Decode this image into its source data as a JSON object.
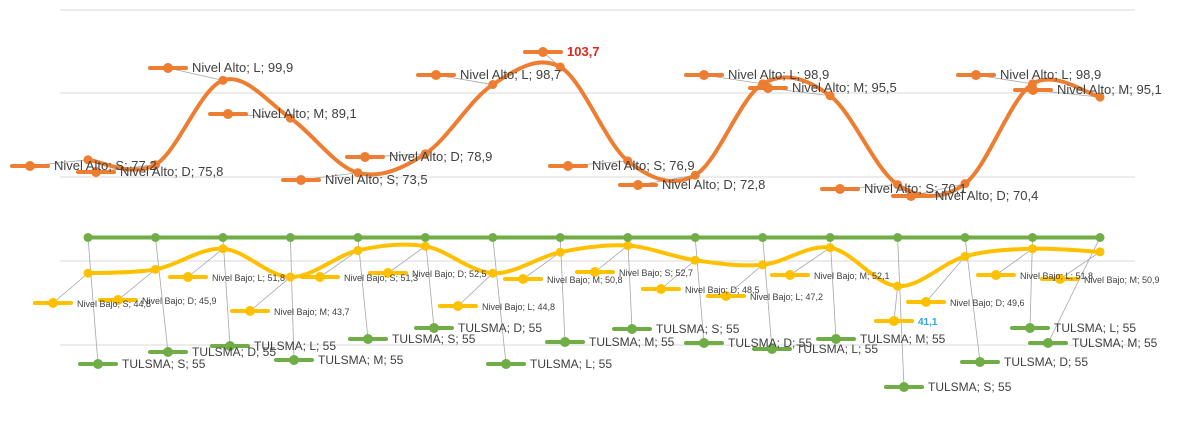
{
  "colors": {
    "alto": "#ED7D31",
    "bajo": "#FFC000",
    "tulsma": "#70AD47",
    "grid": "#D9D9D9",
    "max_label": "#E0281B",
    "min_label": "#2AA6D8"
  },
  "chart_data": {
    "type": "line",
    "categories": [
      "S",
      "D",
      "L",
      "M",
      "S",
      "D",
      "L",
      "M",
      "S",
      "D",
      "L",
      "M",
      "S",
      "D",
      "L",
      "M"
    ],
    "ylim": [
      0,
      120
    ],
    "grid": true,
    "legend": "none",
    "series": [
      {
        "name": "Nivel Alto",
        "values": [
          77.2,
          75.8,
          99.9,
          89.1,
          73.5,
          78.9,
          98.7,
          103.7,
          76.9,
          72.8,
          98.9,
          95.5,
          70.1,
          70.4,
          98.9,
          95.1
        ],
        "labels": [
          "Nivel Alto; S; 77,2",
          "Nivel Alto; D; 75,8",
          "Nivel Alto; L; 99,9",
          "Nivel Alto; M; 89,1",
          "Nivel Alto; S; 73,5",
          "Nivel Alto; D; 78,9",
          "Nivel Alto; L; 98,7",
          "103,7",
          "Nivel Alto; S; 76,9",
          "Nivel Alto; D; 72,8",
          "Nivel Alto; L; 98,9",
          "Nivel Alto; M; 95,5",
          "Nivel Alto; S; 70,1",
          "Nivel Alto; D; 70,4",
          "Nivel Alto; L; 98,9",
          "Nivel Alto; M; 95,1"
        ]
      },
      {
        "name": "Nivel Bajo",
        "values": [
          44.8,
          45.9,
          51.8,
          43.7,
          51.3,
          52.5,
          44.8,
          50.8,
          52.7,
          48.5,
          47.2,
          52.1,
          41.1,
          49.6,
          51.8,
          50.9
        ],
        "labels": [
          "Nivel Bajo; S; 44,8",
          "Nivel Bajo; D; 45,9",
          "Nivel Bajo; L; 51,8",
          "Nivel Bajo; M; 43,7",
          "Nivel Bajo; S; 51,3",
          "Nivel Bajo; D; 52,5",
          "Nivel Bajo; L; 44,8",
          "Nivel Bajo; M; 50,8",
          "Nivel Bajo; S; 52,7",
          "Nivel Bajo; D; 48,5",
          "Nivel Bajo; L; 47,2",
          "Nivel Bajo; M; 52,1",
          "41,1",
          "Nivel Bajo; D; 49,6",
          "Nivel Bajo; L; 51,8",
          "Nivel Bajo; M; 50,9"
        ]
      },
      {
        "name": "TULSMA",
        "values": [
          55,
          55,
          55,
          55,
          55,
          55,
          55,
          55,
          55,
          55,
          55,
          55,
          55,
          55,
          55,
          55
        ],
        "labels": [
          "TULSMA; S; 55",
          "TULSMA; D; 55",
          "TULSMA; L; 55",
          "TULSMA; M; 55",
          "TULSMA; S; 55",
          "TULSMA; D; 55",
          "TULSMA; L; 55",
          "TULSMA; M; 55",
          "TULSMA; S; 55",
          "TULSMA; D; 55",
          "TULSMA; L; 55",
          "TULSMA; M; 55",
          "TULSMA; S; 55",
          "TULSMA; D; 55",
          "TULSMA; L; 55",
          "TULSMA; M; 55"
        ]
      }
    ]
  }
}
